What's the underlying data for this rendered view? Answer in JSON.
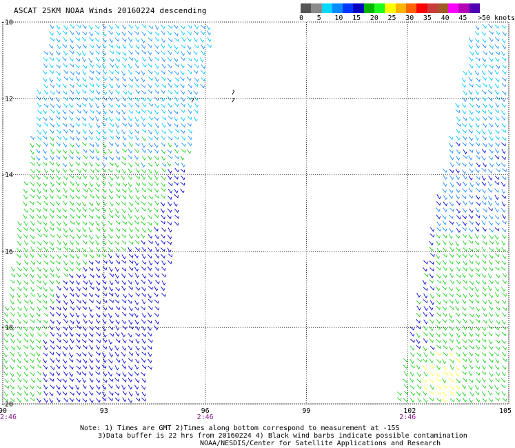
{
  "title": "ASCAT 25KM NOAA Winds 20160224 descending",
  "colorbar": {
    "colors": [
      "#555555",
      "#8a8a8a",
      "#00d8ff",
      "#0a8aff",
      "#0036ff",
      "#0000c0",
      "#00b400",
      "#1dff1d",
      "#ffff00",
      "#ffb400",
      "#ff6400",
      "#ff0000",
      "#c83c3c",
      "#a05a28",
      "#ff00ff",
      "#b400b4",
      "#5000b4"
    ],
    "labels": [
      {
        "text": "0",
        "pos": 0.0
      },
      {
        "text": "5",
        "pos": 1.0
      },
      {
        "text": "10",
        "pos": 2.0
      },
      {
        "text": "15",
        "pos": 3.0
      },
      {
        "text": "20",
        "pos": 4.0
      },
      {
        "text": "25",
        "pos": 5.0
      },
      {
        "text": "30",
        "pos": 6.0
      },
      {
        "text": "35",
        "pos": 7.0
      },
      {
        "text": "40",
        "pos": 8.0
      },
      {
        "text": "45",
        "pos": 9.0
      },
      {
        "text": ">50 knots",
        "pos": 10.0
      }
    ]
  },
  "map": {
    "lon_min": 90,
    "lon_max": 105,
    "lat_min": -20,
    "lat_max": -10,
    "lat_labels": [
      "-10",
      "-12",
      "-14",
      "-16",
      "-18",
      "-20"
    ],
    "lat_values": [
      -10,
      -12,
      -14,
      -16,
      -18,
      -20
    ],
    "lon_labels": [
      "90",
      "93",
      "96",
      "99",
      "102",
      "105"
    ],
    "lon_values": [
      90,
      93,
      96,
      99,
      102,
      105
    ],
    "time_labels": [
      {
        "text": "2:46",
        "lon": 90
      },
      {
        "text": "2:46",
        "lon": 96
      },
      {
        "text": "2:46",
        "lon": 102
      }
    ]
  },
  "notes": {
    "line1": "Note: 1) Times are GMT 2)Times along bottom correspond to measurement at -15S",
    "line2": "3)Data buffer is 22 hrs from 20160224 4) Black wind barbs indicate possible contamination",
    "line3": "NOAA/NESDIS/Center for Satellite Applications and Research"
  },
  "wind_colors": {
    "cyan": "#00c8ff",
    "lightblue": "#1e8cff",
    "blue": "#0000d2",
    "green": "#1ed21e",
    "yellow": "#ffff46",
    "black": "#000000"
  }
}
